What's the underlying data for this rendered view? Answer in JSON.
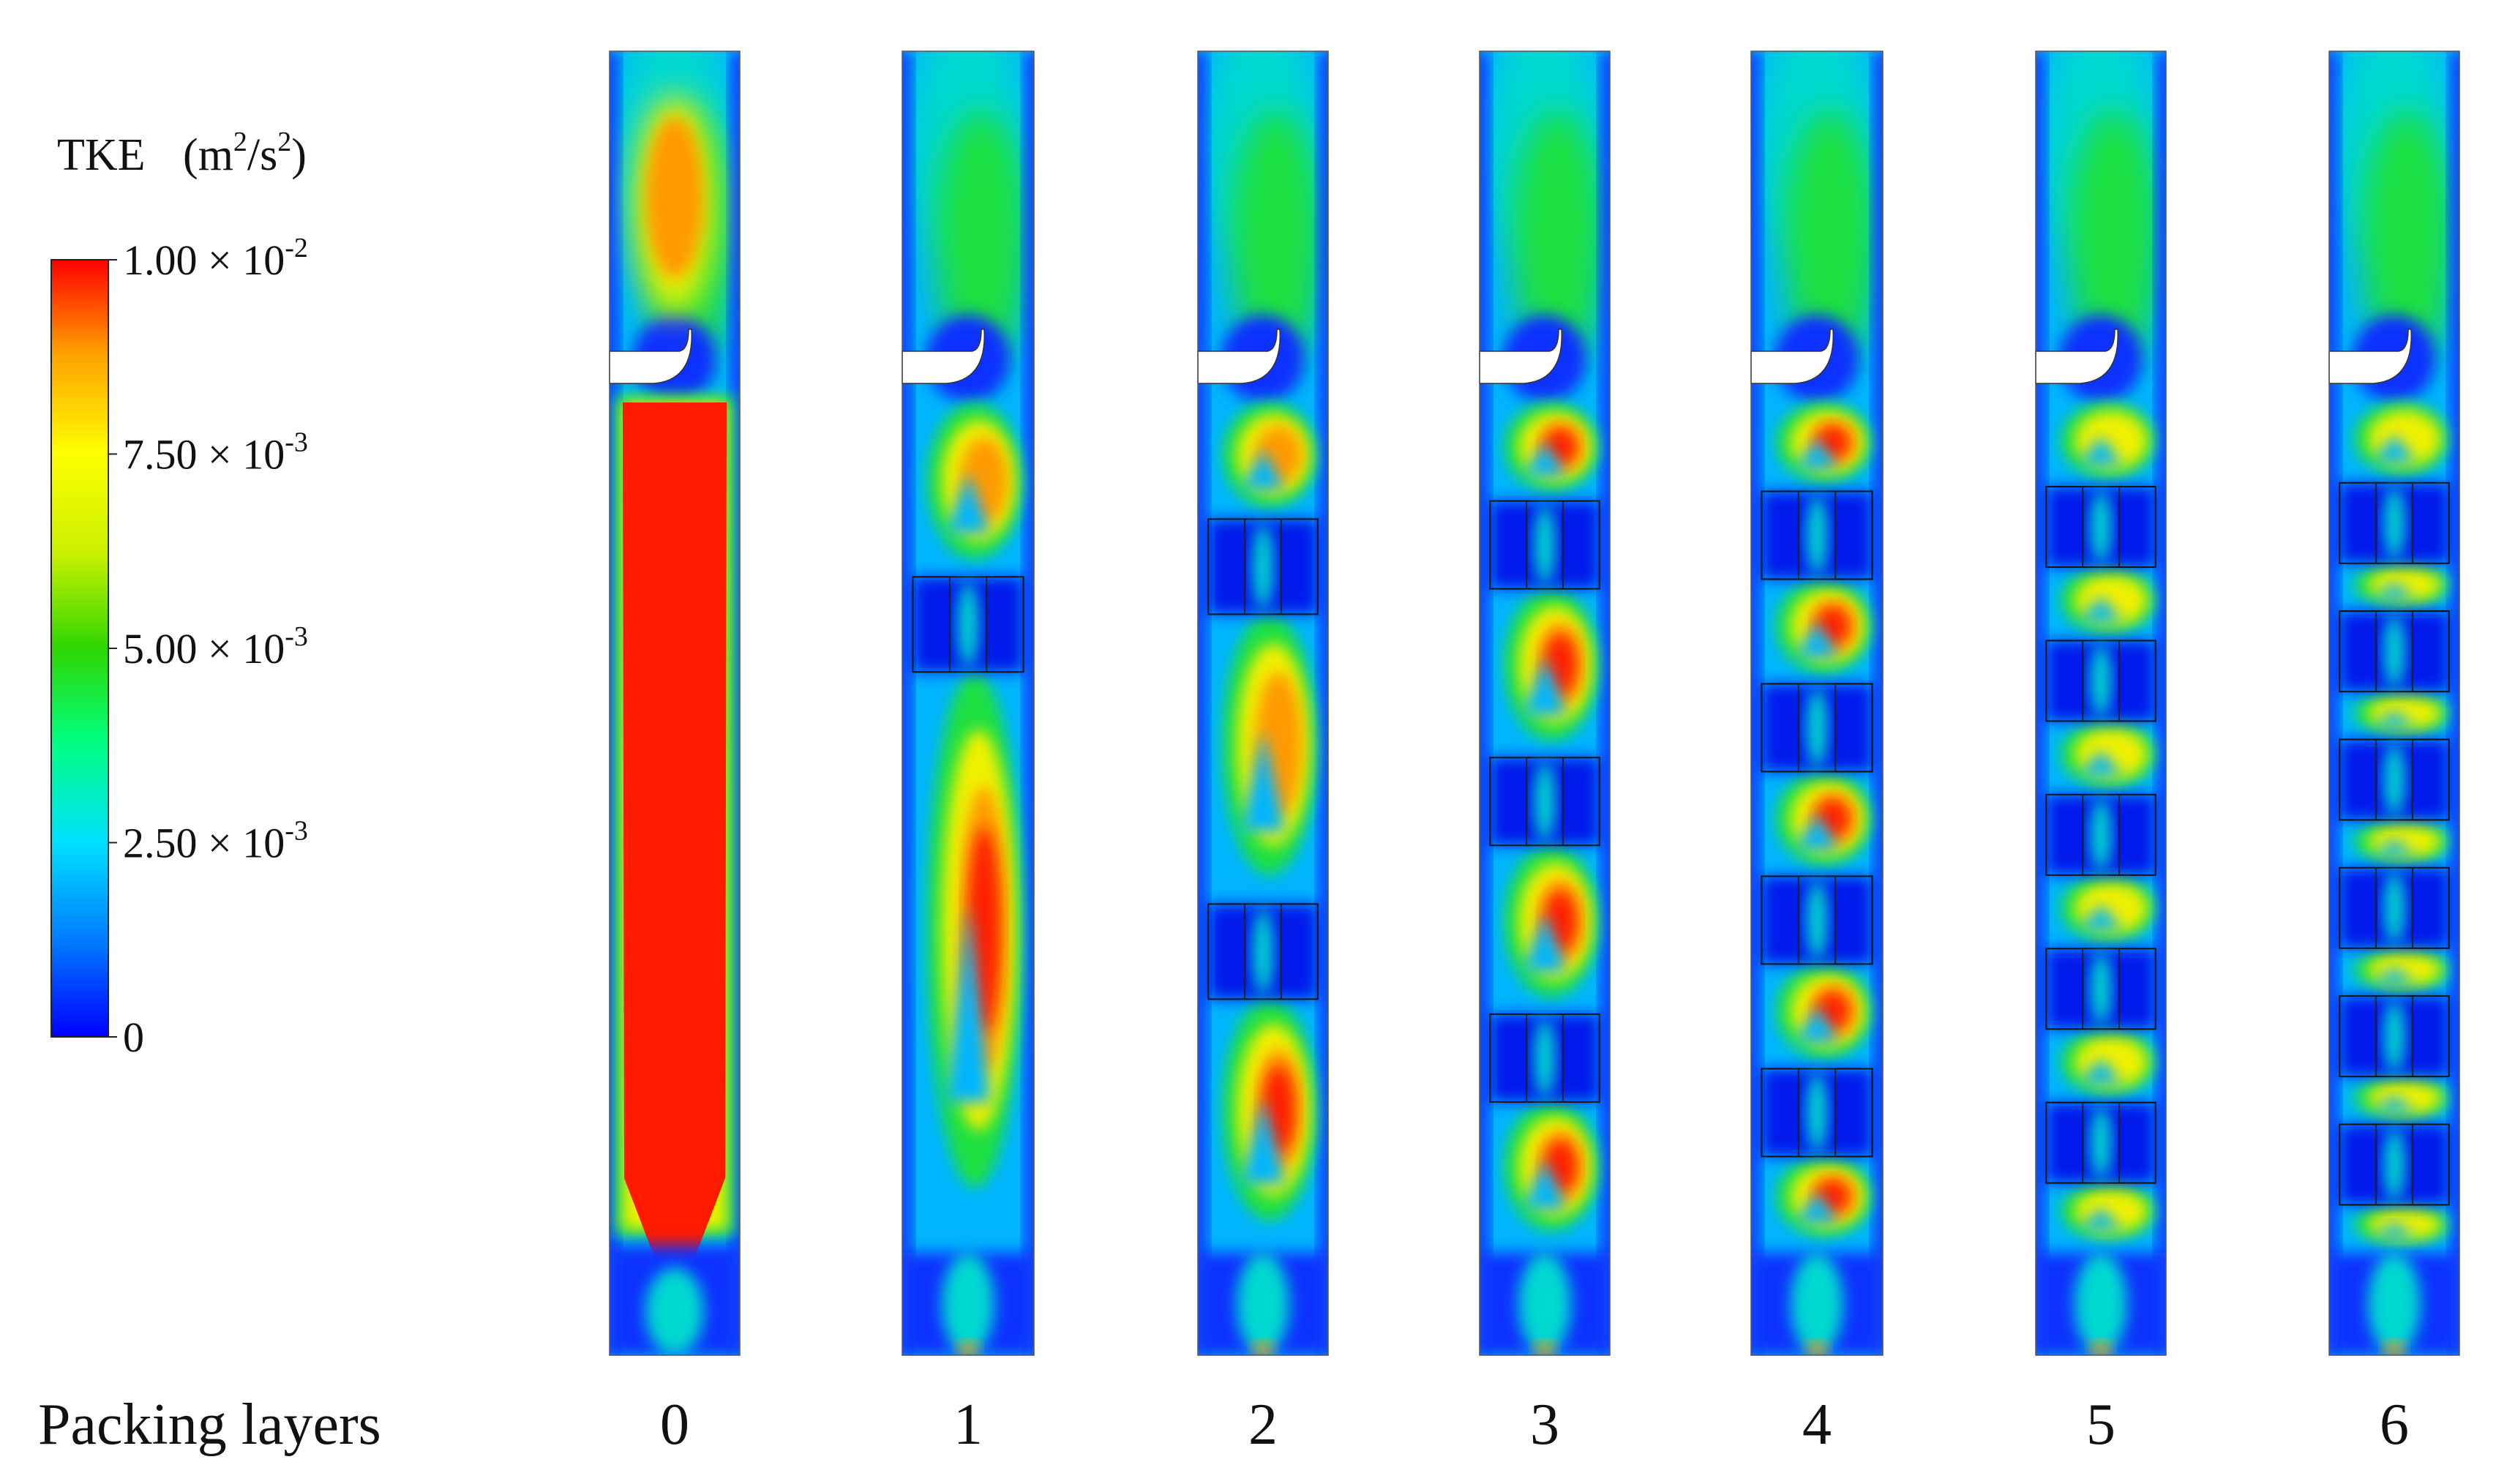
{
  "chart_data": {
    "type": "heatmap",
    "colorbar": {
      "title": "TKE",
      "unit_base": "m",
      "unit_mid": "/s",
      "unit_exp": "2",
      "min": 0,
      "max": 0.01,
      "ticks": [
        {
          "value": 0.01,
          "mantissa": "1.00 × 10",
          "exp": "-2"
        },
        {
          "value": 0.0075,
          "mantissa": "7.50 × 10",
          "exp": "-3"
        },
        {
          "value": 0.005,
          "mantissa": "5.00 × 10",
          "exp": "-3"
        },
        {
          "value": 0.0025,
          "mantissa": "2.50 × 10",
          "exp": "-3"
        },
        {
          "value": 0,
          "mantissa": "0",
          "exp": ""
        }
      ],
      "colors": [
        "#0000ff",
        "#0078ff",
        "#00e0ff",
        "#00ff80",
        "#2ed600",
        "#c8f000",
        "#ffff00",
        "#ffa000",
        "#ff0000"
      ]
    },
    "xlabel": "Packing layers",
    "categories": [
      "0",
      "1",
      "2",
      "3",
      "4",
      "5",
      "6"
    ],
    "packing_layer_counts": [
      0,
      1,
      2,
      3,
      4,
      5,
      6
    ]
  }
}
